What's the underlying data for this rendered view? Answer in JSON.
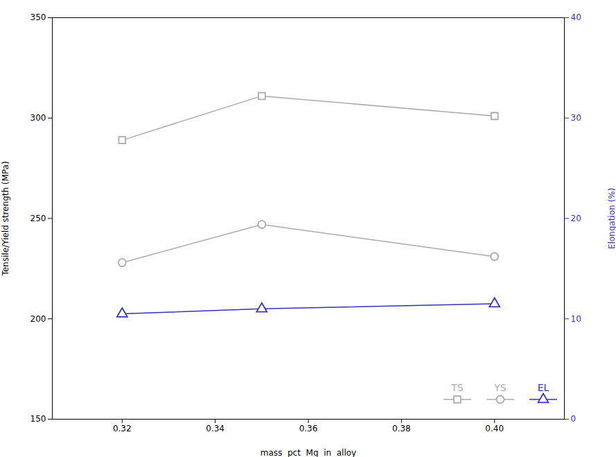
{
  "chart_data": {
    "type": "line",
    "x": [
      0.32,
      0.35,
      0.4
    ],
    "series": [
      {
        "name": "TS",
        "color": "#aaaaaa",
        "marker": "square",
        "values": [
          289,
          311,
          301
        ]
      },
      {
        "name": "YS",
        "color": "#aaaaaa",
        "marker": "circle",
        "values": [
          228,
          247,
          231
        ]
      },
      {
        "name": "EL",
        "color": "#3333bb",
        "marker": "triangle",
        "axis": "y2",
        "values": [
          10.5,
          11.0,
          11.5
        ]
      }
    ],
    "xlabel": "mass  pct  Mg  in  alloy",
    "ylabel": "Tensile/Yield strength (MPa)",
    "y2label": "Elongation (%)",
    "xlim": [
      0.305,
      0.415
    ],
    "xticks": [
      0.32,
      0.34,
      0.36,
      0.38,
      {
        "value": 0.4,
        "label": "0.40"
      }
    ],
    "ylim": [
      150,
      350
    ],
    "yticks": [
      150,
      200,
      250,
      300,
      350
    ],
    "y2lim": [
      0,
      40
    ],
    "y2ticks": [
      0,
      10,
      20,
      30,
      40
    ],
    "grid": false,
    "legend": "lower right"
  }
}
